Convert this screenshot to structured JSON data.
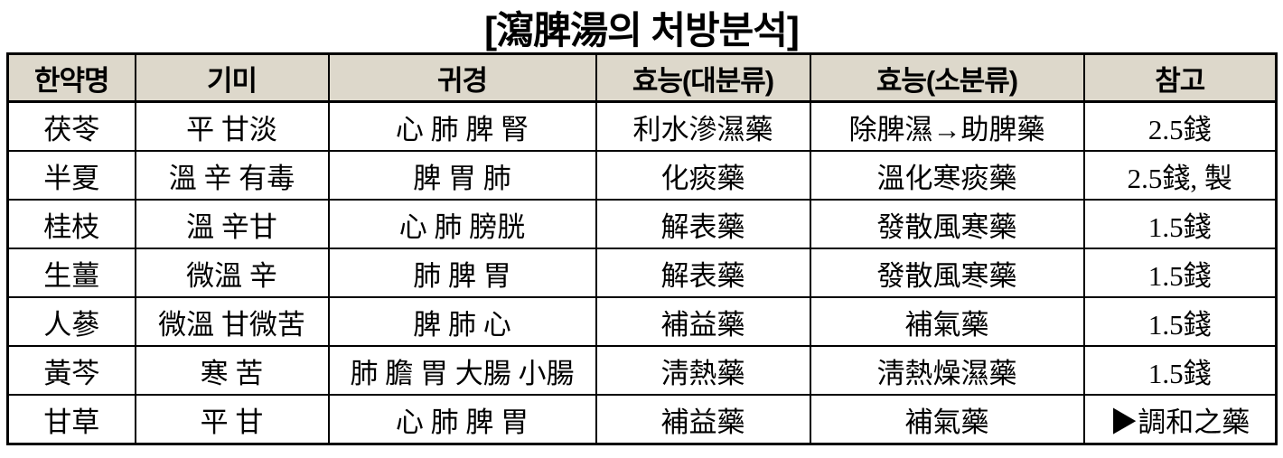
{
  "title": "[瀉脾湯의 처방분석]",
  "table": {
    "columns": [
      "한약명",
      "기미",
      "귀경",
      "효능(대분류)",
      "효능(소분류)",
      "참고"
    ],
    "rows": [
      {
        "cells": [
          "茯苓",
          "平 甘淡",
          "心 肺 脾 腎",
          "利水滲濕藥",
          "除脾濕→助脾藥",
          "2.5錢"
        ]
      },
      {
        "cells": [
          "半夏",
          "溫 辛 有毒",
          "脾 胃 肺",
          "化痰藥",
          "溫化寒痰藥",
          "2.5錢, 製"
        ]
      },
      {
        "cells": [
          "桂枝",
          "溫 辛甘",
          "心 肺 膀胱",
          "解表藥",
          "發散風寒藥",
          "1.5錢"
        ]
      },
      {
        "cells": [
          "生薑",
          "微溫 辛",
          "肺 脾 胃",
          "解表藥",
          "發散風寒藥",
          "1.5錢"
        ]
      },
      {
        "cells": [
          "人蔘",
          "微溫 甘微苦",
          "脾 肺 心",
          "補益藥",
          "補氣藥",
          "1.5錢"
        ]
      },
      {
        "cells": [
          "黃芩",
          "寒 苦",
          "肺 膽 胃 大腸 小腸",
          "淸熱藥",
          "淸熱燥濕藥",
          "1.5錢"
        ]
      },
      {
        "cells": [
          "甘草",
          "平 甘",
          "心 肺 脾 胃",
          "補益藥",
          "補氣藥",
          "▶調和之藥"
        ]
      }
    ]
  },
  "colors": {
    "header_bg": "#ddd8cb",
    "border": "#000000",
    "text": "#000000",
    "background": "#ffffff"
  }
}
